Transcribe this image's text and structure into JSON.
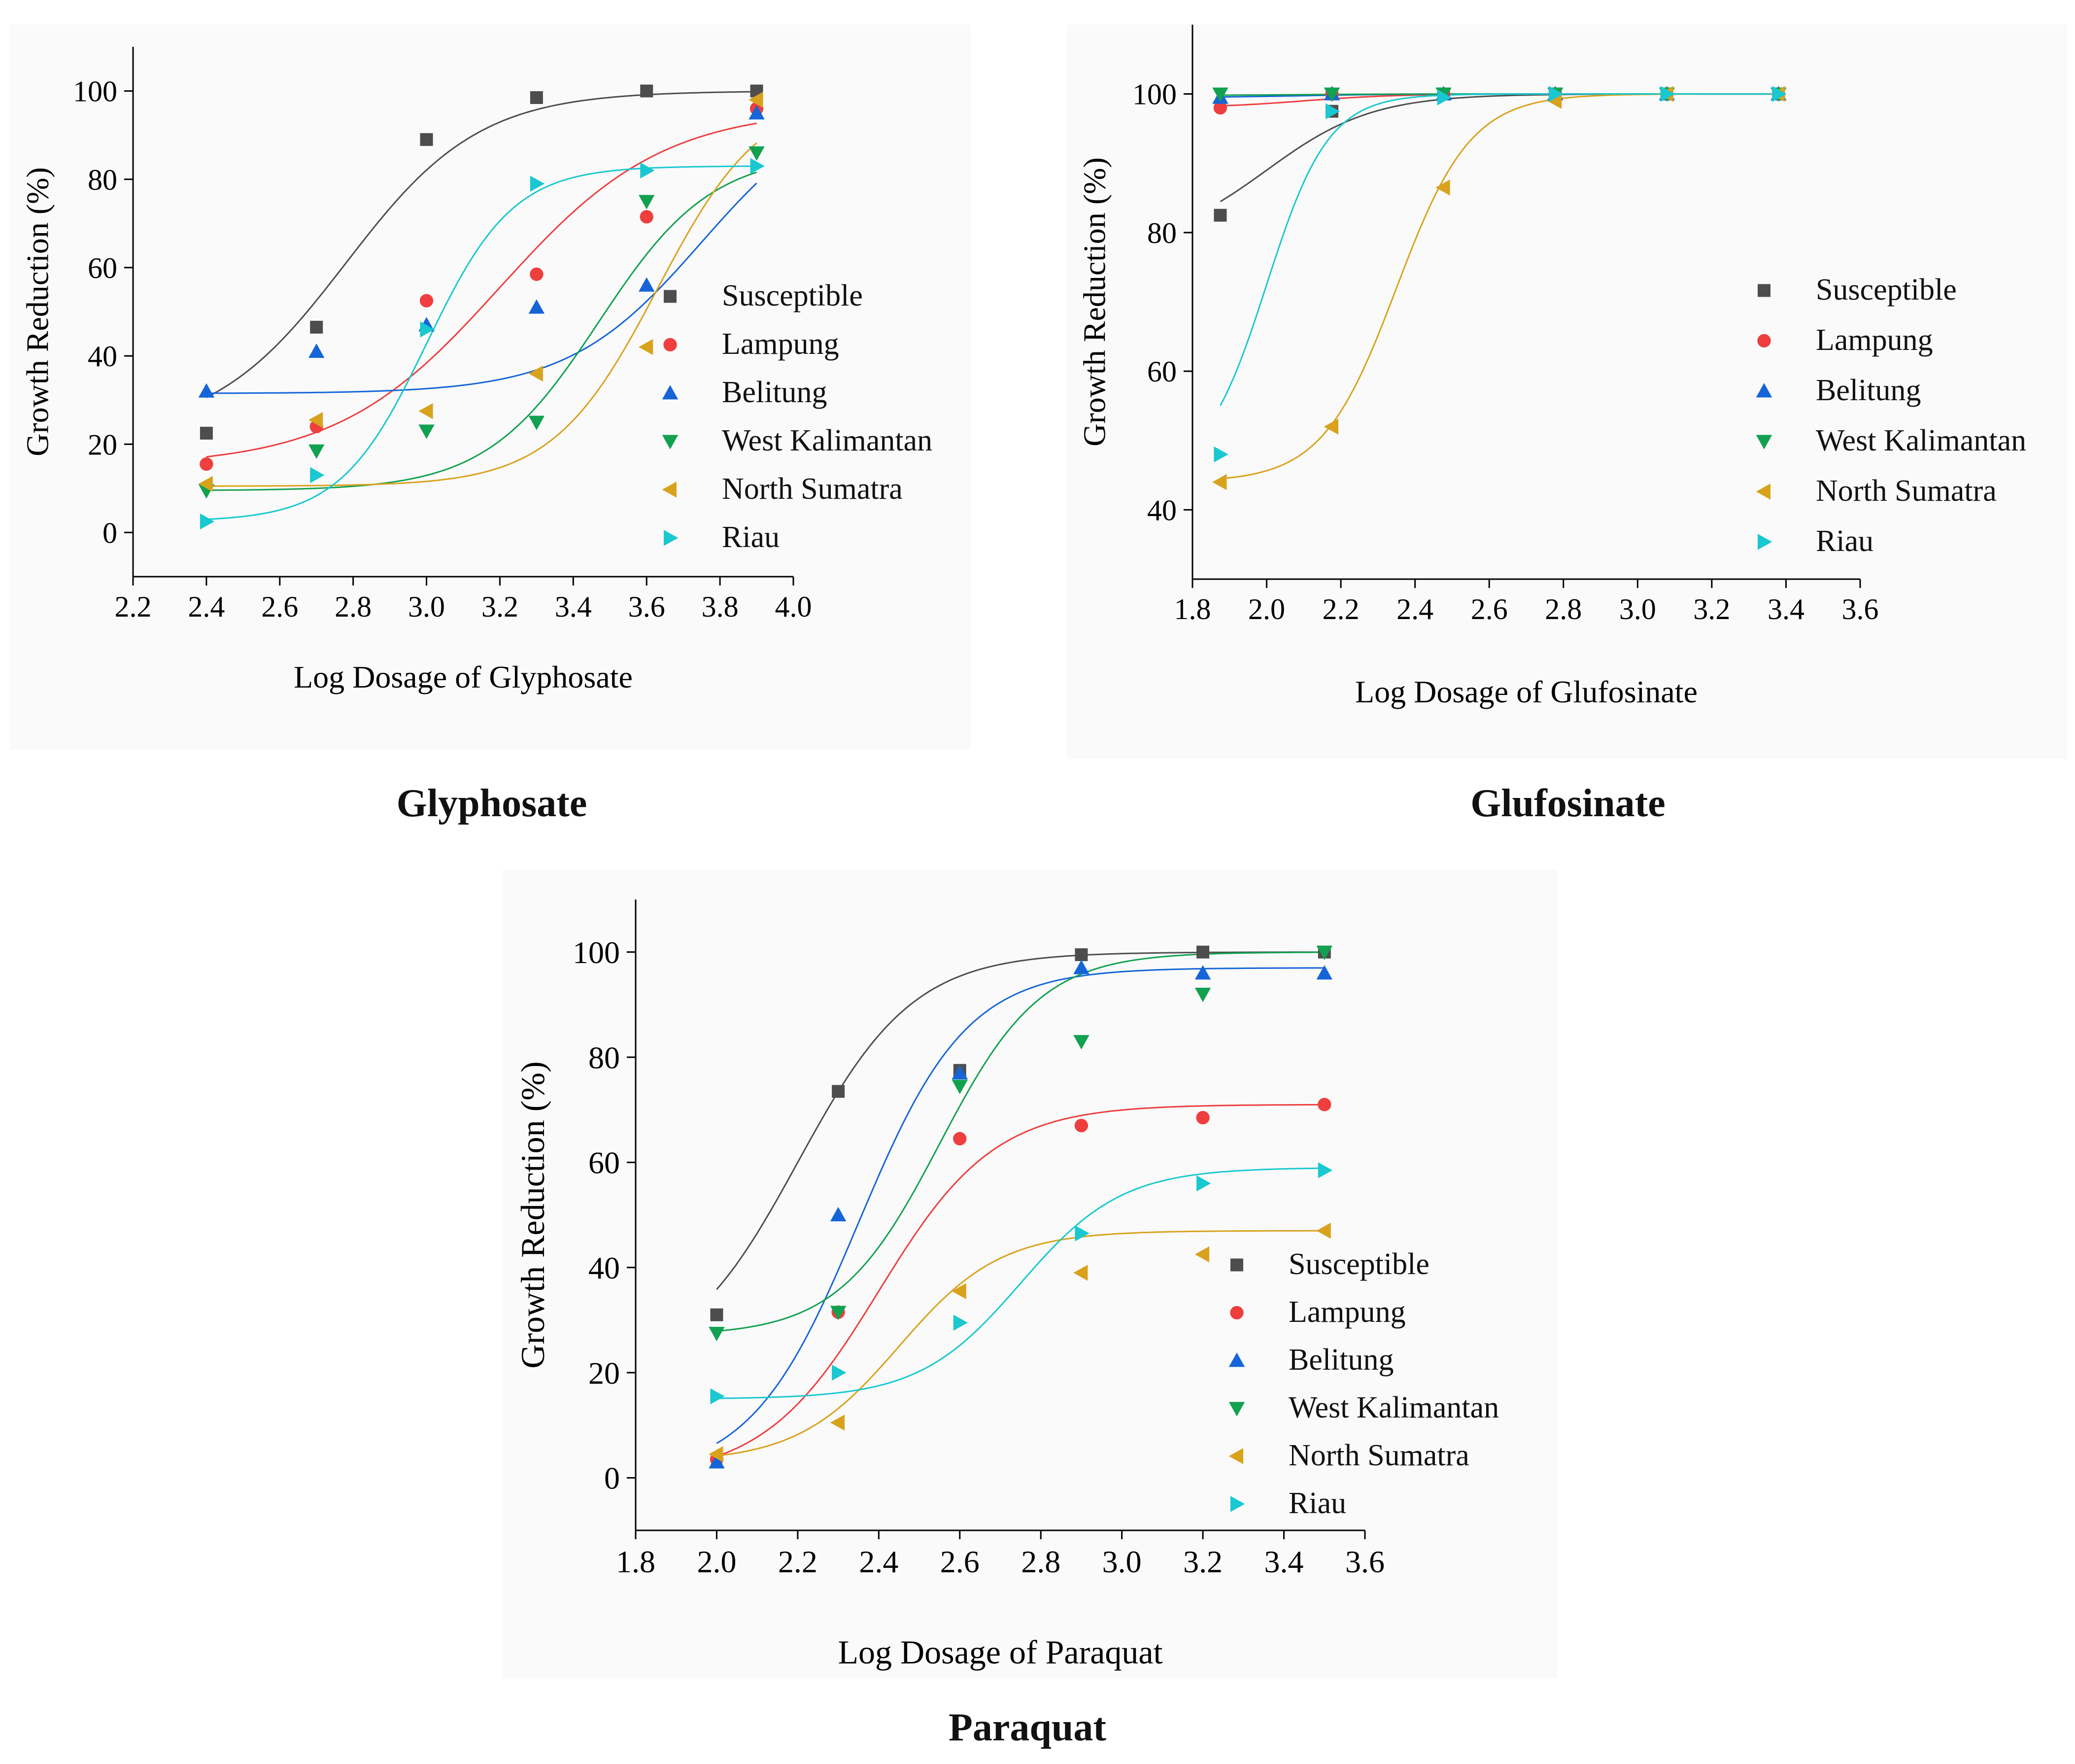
{
  "series_names": [
    "Susceptible",
    "Lampung",
    "Belitung",
    "West Kalimantan",
    "North Sumatra",
    "Riau"
  ],
  "colors": {
    "Susceptible": "#4d4d4d",
    "Lampung": "#ee3e3e",
    "Belitung": "#1565d8",
    "West Kalimantan": "#12a150",
    "North Sumatra": "#d9a21c",
    "Riau": "#19c8d0",
    "axis": "#000000"
  },
  "markers": {
    "Susceptible": "square",
    "Lampung": "circle",
    "Belitung": "triangle-up",
    "West Kalimantan": "triangle-down",
    "North Sumatra": "triangle-left",
    "Riau": "triangle-right"
  },
  "captions": {
    "glyphosate": "Glyphosate",
    "glufosinate": "Glufosinate",
    "paraquat": "Paraquat"
  },
  "chart_data": [
    {
      "id": "glyphosate",
      "type": "scatter",
      "title": "Glyphosate",
      "xlabel": "Log Dosage of Glyphosate",
      "ylabel": "Growth Reduction (%)",
      "xlim": [
        2.2,
        4.0
      ],
      "ylim": [
        -10,
        110
      ],
      "xticks": [
        "2.2",
        "2.4",
        "2.6",
        "2.8",
        "3.0",
        "3.2",
        "3.4",
        "3.6",
        "3.8",
        "4.0"
      ],
      "yticks": [
        "0",
        "20",
        "40",
        "60",
        "80",
        "100"
      ],
      "legend_position": "right-middle",
      "x": [
        2.4,
        2.7,
        3.0,
        3.3,
        3.6,
        3.9
      ],
      "series": [
        {
          "name": "Susceptible",
          "values": [
            22.5,
            46.5,
            89,
            98.5,
            100,
            100
          ],
          "fit": {
            "bottom": 22,
            "top": 100,
            "x0": 2.78,
            "slope": 5.5
          }
        },
        {
          "name": "Lampung",
          "values": [
            15.5,
            24,
            52.5,
            58.5,
            71.5,
            96
          ],
          "fit": {
            "bottom": 15,
            "top": 96,
            "x0": 3.2,
            "slope": 4.5
          }
        },
        {
          "name": "Belitung",
          "values": [
            32,
            41,
            47,
            51,
            56,
            95
          ],
          "fit": {
            "bottom": 31.5,
            "top": 100,
            "x0": 3.75,
            "slope": 5.5
          }
        },
        {
          "name": "West Kalimantan",
          "values": [
            9.5,
            18.5,
            23,
            25,
            75,
            86
          ],
          "fit": {
            "bottom": 9.5,
            "top": 86,
            "x0": 3.47,
            "slope": 6.5
          }
        },
        {
          "name": "North Sumatra",
          "values": [
            11,
            25.5,
            27.5,
            36,
            42,
            98
          ],
          "fit": {
            "bottom": 10.5,
            "top": 100,
            "x0": 3.63,
            "slope": 7.0
          }
        },
        {
          "name": "Riau",
          "values": [
            2.5,
            13,
            46,
            79,
            82,
            83
          ],
          "fit": {
            "bottom": 2.5,
            "top": 83,
            "x0": 3.0,
            "slope": 8.5
          }
        }
      ]
    },
    {
      "id": "glufosinate",
      "type": "scatter",
      "title": "Glufosinate",
      "xlabel": "Log Dosage of Glufosinate",
      "ylabel": "Growth Reduction (%)",
      "xlim": [
        1.8,
        3.6
      ],
      "ylim": [
        30,
        110
      ],
      "xticks": [
        "1.8",
        "2.0",
        "2.2",
        "2.4",
        "2.6",
        "2.8",
        "3.0",
        "3.2",
        "3.4",
        "3.6"
      ],
      "yticks": [
        "40",
        "60",
        "80",
        "100"
      ],
      "legend_position": "right-middle",
      "x": [
        1.875,
        2.176,
        2.477,
        2.778,
        3.079,
        3.38
      ],
      "series": [
        {
          "name": "Susceptible",
          "values": [
            82.5,
            97.5,
            100,
            100,
            100,
            100
          ],
          "fit": {
            "bottom": 78,
            "top": 100,
            "x0": 2.0,
            "slope": 7.0
          }
        },
        {
          "name": "Lampung",
          "values": [
            98,
            100,
            100,
            100,
            100,
            100
          ],
          "fit": {
            "bottom": 98,
            "top": 100,
            "x0": 2.1,
            "slope": 8.0
          }
        },
        {
          "name": "Belitung",
          "values": [
            99.5,
            100,
            100,
            100,
            100,
            100
          ],
          "fit": {
            "bottom": 99.5,
            "top": 100,
            "x0": 2.1,
            "slope": 8.0
          }
        },
        {
          "name": "West Kalimantan",
          "values": [
            100,
            100,
            100,
            100,
            100,
            100
          ],
          "fit": {
            "bottom": 99.8,
            "top": 100,
            "x0": 2.1,
            "slope": 8.0
          }
        },
        {
          "name": "North Sumatra",
          "values": [
            44,
            52,
            86.5,
            99,
            100,
            100
          ],
          "fit": {
            "bottom": 44,
            "top": 100,
            "x0": 2.35,
            "slope": 10.0
          }
        },
        {
          "name": "Riau",
          "values": [
            48,
            97.5,
            99.5,
            100,
            100,
            100
          ],
          "fit": {
            "bottom": 45,
            "top": 100,
            "x0": 2.0,
            "slope": 12.0
          }
        }
      ]
    },
    {
      "id": "paraquat",
      "type": "scatter",
      "title": "Paraquat",
      "xlabel": "Log Dosage of Paraquat",
      "ylabel": "Growth Reduction (%)",
      "xlim": [
        1.8,
        3.6
      ],
      "ylim": [
        -10,
        110
      ],
      "xticks": [
        "1.8",
        "2.0",
        "2.2",
        "2.4",
        "2.6",
        "2.8",
        "3.0",
        "3.2",
        "3.4",
        "3.6"
      ],
      "yticks": [
        "0",
        "20",
        "40",
        "60",
        "80",
        "100"
      ],
      "legend_position": "right-bottom",
      "x": [
        2.0,
        2.3,
        2.6,
        2.9,
        3.2,
        3.5
      ],
      "series": [
        {
          "name": "Susceptible",
          "values": [
            31,
            73.5,
            77.5,
            99.5,
            100,
            100
          ],
          "fit": {
            "bottom": 20,
            "top": 100,
            "x0": 2.2,
            "slope": 7.0
          }
        },
        {
          "name": "Lampung",
          "values": [
            3.5,
            31.5,
            64.5,
            67,
            68.5,
            71
          ],
          "fit": {
            "bottom": 0,
            "top": 71,
            "x0": 2.4,
            "slope": 7.0
          }
        },
        {
          "name": "Belitung",
          "values": [
            3,
            50,
            77,
            97,
            96,
            96
          ],
          "fit": {
            "bottom": 0,
            "top": 97,
            "x0": 2.35,
            "slope": 7.5
          }
        },
        {
          "name": "West Kalimantan",
          "values": [
            27.5,
            31.5,
            74.5,
            83,
            92,
            100
          ],
          "fit": {
            "bottom": 27,
            "top": 100,
            "x0": 2.55,
            "slope": 8.0
          }
        },
        {
          "name": "North Sumatra",
          "values": [
            4.5,
            10.5,
            35.5,
            39,
            42.5,
            47
          ],
          "fit": {
            "bottom": 3,
            "top": 47,
            "x0": 2.45,
            "slope": 8.0
          }
        },
        {
          "name": "Riau",
          "values": [
            15.5,
            20,
            29.5,
            46.5,
            56,
            58.5
          ],
          "fit": {
            "bottom": 15,
            "top": 59,
            "x0": 2.75,
            "slope": 8.0
          }
        }
      ]
    }
  ]
}
